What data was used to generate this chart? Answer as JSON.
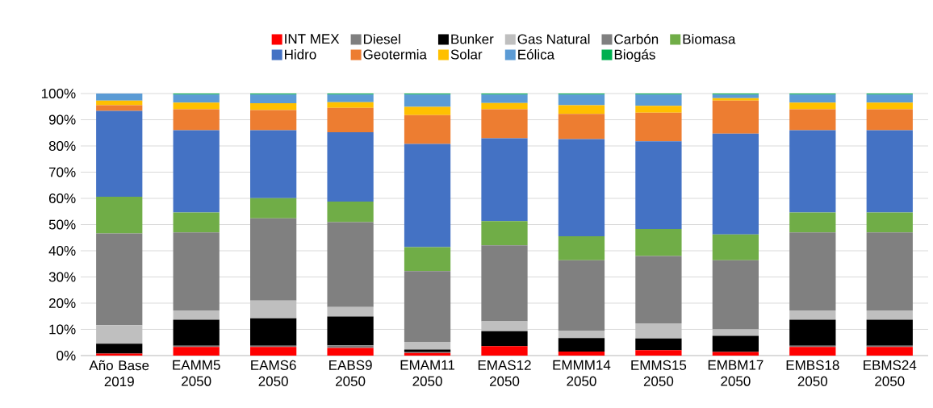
{
  "chart_data": {
    "type": "bar",
    "stacked": true,
    "legend": "top",
    "grid": "y",
    "categories": [
      "Año Base 2019",
      "EAMM5 2050",
      "EAMS6 2050",
      "EABS9 2050",
      "EMAM11 2050",
      "EMAS12 2050",
      "EMMM14 2050",
      "EMMS15 2050",
      "EMBM17 2050",
      "EMBS18 2050",
      "EBMS24 2050"
    ],
    "ylim": [
      0,
      100
    ],
    "yticks": [
      {
        "value": 0,
        "label": "0%"
      },
      {
        "value": 10,
        "label": "10%"
      },
      {
        "value": 20,
        "label": "20%"
      },
      {
        "value": 30,
        "label": "30%"
      },
      {
        "value": 40,
        "label": "40%"
      },
      {
        "value": 50,
        "label": "50%"
      },
      {
        "value": 60,
        "label": "60%"
      },
      {
        "value": 70,
        "label": "70%"
      },
      {
        "value": 80,
        "label": "80%"
      },
      {
        "value": 90,
        "label": "90%"
      },
      {
        "value": 100,
        "label": "100%"
      }
    ],
    "series": [
      {
        "name": "INT MEX",
        "color": "#ff0000",
        "values": [
          0.8,
          3.3,
          3.3,
          2.9,
          1.0,
          3.6,
          1.5,
          2.1,
          1.4,
          3.3,
          3.3
        ]
      },
      {
        "name": "Diesel",
        "color": "#7f7f7f",
        "values": [
          0,
          0.5,
          0.5,
          1.0,
          0.3,
          0,
          0,
          0,
          0,
          0.5,
          0.5
        ]
      },
      {
        "name": "Bunker",
        "color": "#000000",
        "values": [
          3.7,
          9.9,
          10.4,
          11.0,
          1.0,
          5.7,
          5.2,
          4.4,
          6.1,
          9.9,
          9.9
        ]
      },
      {
        "name": "Gas Natural",
        "color": "#bfbfbf",
        "values": [
          7.1,
          3.5,
          6.8,
          3.6,
          2.9,
          3.8,
          2.8,
          5.8,
          2.5,
          3.5,
          3.5
        ]
      },
      {
        "name": "Carbón",
        "color": "#808080",
        "values": [
          35.0,
          29.8,
          31.4,
          32.4,
          27.0,
          29.0,
          26.9,
          25.7,
          26.4,
          29.8,
          29.8
        ]
      },
      {
        "name": "Biomasa",
        "color": "#70ad47",
        "values": [
          14.0,
          7.6,
          7.7,
          7.9,
          9.2,
          9.2,
          9.1,
          10.3,
          9.8,
          7.6,
          7.6
        ]
      },
      {
        "name": "Hidro",
        "color": "#4472c4",
        "values": [
          32.8,
          31.4,
          25.9,
          26.4,
          39.4,
          31.6,
          37.1,
          33.5,
          38.5,
          31.4,
          31.4
        ]
      },
      {
        "name": "Geotermia",
        "color": "#ed7d31",
        "values": [
          2.1,
          8.0,
          7.7,
          9.3,
          11.0,
          11.1,
          9.6,
          10.9,
          12.6,
          8.0,
          8.0
        ]
      },
      {
        "name": "Solar",
        "color": "#ffc000",
        "values": [
          1.8,
          2.5,
          2.6,
          2.2,
          3.1,
          2.4,
          3.3,
          2.6,
          0.9,
          2.5,
          2.5
        ]
      },
      {
        "name": "Eólica",
        "color": "#5b9bd5",
        "values": [
          2.7,
          3.1,
          3.3,
          2.9,
          4.7,
          3.2,
          4.1,
          4.3,
          1.4,
          3.1,
          3.1
        ]
      },
      {
        "name": "Biogás",
        "color": "#00b050",
        "values": [
          0,
          0.4,
          0.4,
          0.4,
          0.4,
          0.4,
          0.4,
          0.4,
          0.4,
          0.4,
          0.4
        ]
      }
    ]
  }
}
